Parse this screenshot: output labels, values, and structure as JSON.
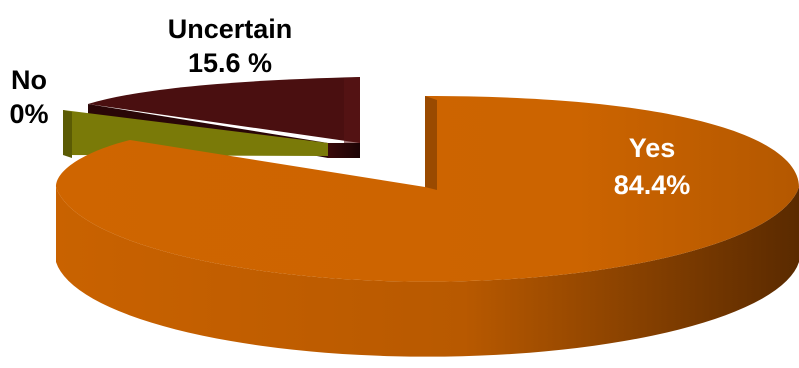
{
  "chart_data": {
    "type": "pie",
    "style": "3d-exploded",
    "slices": [
      {
        "label": "Yes",
        "value_label": "84.4%",
        "value": 84.4,
        "color": "#cc6600",
        "label_color": "#ffffff"
      },
      {
        "label": "No",
        "value_label": "0%",
        "value": 0,
        "color": "#7a7a08",
        "label_color": "#000000"
      },
      {
        "label": "Uncertain",
        "value_label": "15.6 %",
        "value": 15.6,
        "color": "#4a0f10",
        "label_color": "#000000"
      }
    ],
    "legend": "none"
  }
}
